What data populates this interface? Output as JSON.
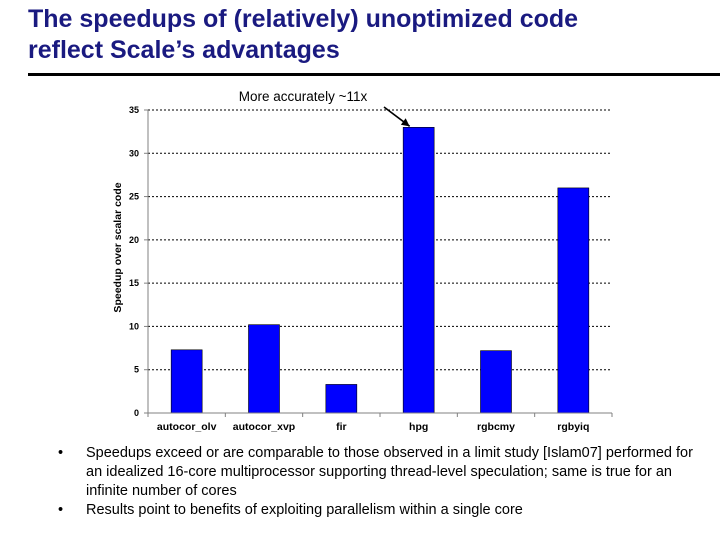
{
  "slide": {
    "title_line1": "The speedups of (relatively) unoptimized code",
    "title_line2": "reflect Scale’s advantages",
    "bullet_symbol": "•",
    "bullets": [
      "Speedups exceed or are comparable to those observed in a limit study [Islam07] performed for an idealized 16-core multiprocessor supporting thread-level speculation; same is true for an infinite number of cores",
      "Results point to benefits of exploiting parallelism within a single core"
    ]
  },
  "colors": {
    "title": "#1a1a80",
    "bar": "#0000ff",
    "rule": "#000000"
  },
  "chart_data": {
    "type": "bar",
    "categories": [
      "autocor_olv",
      "autocor_xvp",
      "fir",
      "hpg",
      "rgbcmy",
      "rgbyiq"
    ],
    "values": [
      7.3,
      10.2,
      3.3,
      33.0,
      7.2,
      26.0
    ],
    "title": "",
    "xlabel": "",
    "ylabel": "Speedup over scalar code",
    "ylim": [
      0,
      35
    ],
    "yticks": [
      0,
      5,
      10,
      15,
      20,
      25,
      30,
      35
    ],
    "grid": true,
    "annotation": {
      "text": "More accurately ~11x",
      "target_category": "hpg"
    }
  }
}
